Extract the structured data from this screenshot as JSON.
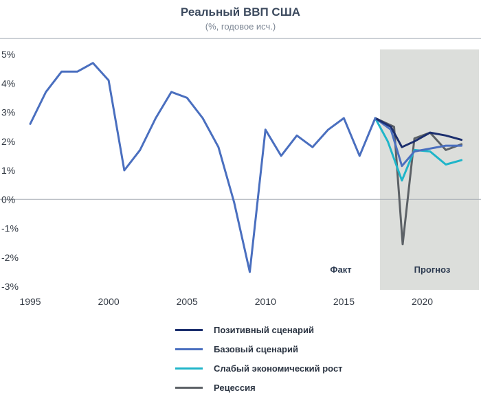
{
  "title": "Реальный ВВП США",
  "subtitle": "(%, годовое исч.)",
  "chart_data": {
    "type": "line",
    "title": "Реальный ВВП США",
    "subtitle": "(%, годовое исч.)",
    "xlim": [
      1995,
      2023
    ],
    "ylim": [
      -3,
      5
    ],
    "x_ticks": [
      "1995",
      "2000",
      "2005",
      "2010",
      "2015",
      "2020"
    ],
    "y_ticks": [
      "5%",
      "4%",
      "3%",
      "2%",
      "1%",
      "0%",
      "-1%",
      "-2%",
      "-3%"
    ],
    "forecast_region": {
      "start": 2017.3,
      "end": 2023
    },
    "zone_labels": {
      "fact": "Факт",
      "forecast": "Прогноз"
    },
    "grid": false,
    "legend_position": "bottom",
    "history": {
      "color": "#4a6fbf",
      "x": [
        1995,
        1996,
        1997,
        1998,
        1999,
        2000,
        2001,
        2002,
        2003,
        2004,
        2005,
        2006,
        2007,
        2008,
        2009,
        2010,
        2011,
        2012,
        2013,
        2014,
        2015,
        2016,
        2017
      ],
      "values": [
        2.6,
        3.7,
        4.4,
        4.4,
        4.7,
        4.1,
        1.0,
        1.7,
        2.8,
        3.7,
        3.5,
        2.8,
        1.8,
        -0.1,
        -2.5,
        2.4,
        1.5,
        2.2,
        1.8,
        2.4,
        2.8,
        1.5,
        2.8
      ]
    },
    "series": [
      {
        "name": "Позитивный сценарий",
        "color": "#1c2f6e",
        "x": [
          2017,
          2018,
          2018.7,
          2019.5,
          2020.5,
          2021.5,
          2022.5
        ],
        "values": [
          2.8,
          2.5,
          1.8,
          2.0,
          2.3,
          2.2,
          2.05
        ]
      },
      {
        "name": "Базовый сценарий",
        "color": "#4a6fbf",
        "x": [
          2017,
          2018,
          2018.7,
          2019.5,
          2020.5,
          2021.5,
          2022.5
        ],
        "values": [
          2.8,
          2.4,
          1.15,
          1.65,
          1.75,
          1.85,
          1.85
        ]
      },
      {
        "name": "Слабый экономический рост",
        "color": "#1fb5c9",
        "x": [
          2017,
          2017.8,
          2018.7,
          2019.5,
          2020.5,
          2021.5,
          2022.5
        ],
        "values": [
          2.8,
          2.0,
          0.65,
          1.7,
          1.65,
          1.2,
          1.35
        ]
      },
      {
        "name": "Рецессия",
        "color": "#5c6166",
        "x": [
          2017,
          2018.2,
          2018.75,
          2019.5,
          2020.5,
          2021.5,
          2022.5
        ],
        "values": [
          2.8,
          2.5,
          -1.55,
          2.1,
          2.3,
          1.7,
          1.9
        ]
      }
    ]
  }
}
